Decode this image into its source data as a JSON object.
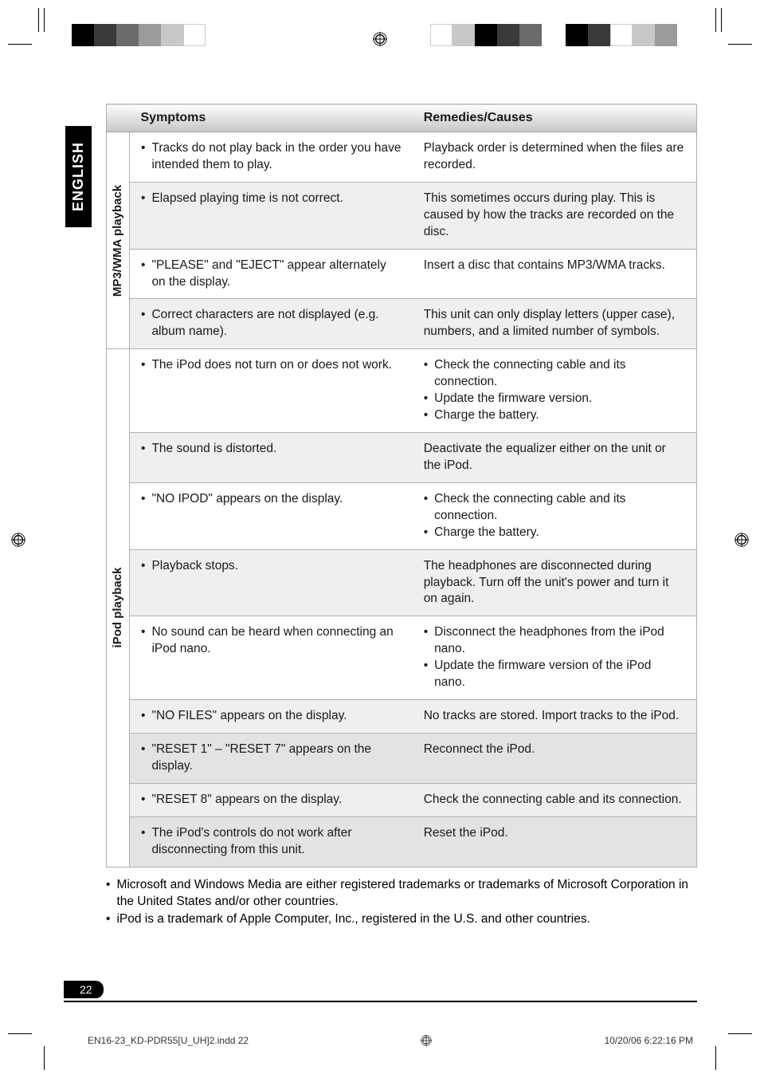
{
  "language_tab": "ENGLISH",
  "page_number": "22",
  "slug_left": "EN16-23_KD-PDR55[U_UH]2.indd   22",
  "slug_right": "10/20/06   6:22:16 PM",
  "headers": {
    "symptoms": "Symptoms",
    "remedies": "Remedies/Causes"
  },
  "sections": [
    {
      "label": "MP3/WMA playback",
      "rows": [
        {
          "shade": "shade-a",
          "symptom": "Tracks do not play back in the order you have intended them to play.",
          "remedy_text": "Playback order is determined when the files are recorded."
        },
        {
          "shade": "shade-b",
          "symptom": "Elapsed playing time is not correct.",
          "remedy_text": "This sometimes occurs during play. This is caused by how the tracks are recorded on the disc."
        },
        {
          "shade": "shade-a",
          "symptom": "\"PLEASE\" and \"EJECT\" appear alternately on the display.",
          "remedy_text": "Insert a disc that contains MP3/WMA tracks."
        },
        {
          "shade": "shade-b",
          "symptom": "Correct characters are not displayed (e.g. album name).",
          "remedy_text": "This unit can only display letters (upper case), numbers, and a limited number of symbols."
        }
      ]
    },
    {
      "label": "iPod playback",
      "rows": [
        {
          "shade": "shade-a",
          "symptom": "The iPod does not turn on or does not work.",
          "remedy_list": [
            "Check the connecting cable and its connection.",
            "Update the firmware version.",
            "Charge the battery."
          ]
        },
        {
          "shade": "shade-b",
          "symptom": "The sound is distorted.",
          "remedy_text": "Deactivate the equalizer either on the unit or the iPod."
        },
        {
          "shade": "shade-a",
          "symptom": "\"NO IPOD\" appears on the display.",
          "remedy_list": [
            "Check the connecting cable and its connection.",
            "Charge the battery."
          ]
        },
        {
          "shade": "shade-b",
          "symptom": "Playback stops.",
          "remedy_text": "The headphones are disconnected during playback. Turn off the unit's power and turn it on again."
        },
        {
          "shade": "shade-a",
          "symptom": "No sound can be heard when connecting an iPod nano.",
          "remedy_list": [
            "Disconnect the headphones from the iPod nano.",
            "Update the firmware version of the iPod nano."
          ]
        },
        {
          "shade": "shade-b",
          "symptom": "\"NO FILES\" appears on the display.",
          "remedy_text": "No tracks are stored. Import tracks to the iPod."
        },
        {
          "shade": "shade-c",
          "symptom": "\"RESET 1\" – \"RESET 7\" appears on the display.",
          "remedy_text": "Reconnect the iPod."
        },
        {
          "shade": "shade-b",
          "symptom": "\"RESET 8\" appears on the display.",
          "remedy_text": "Check the connecting cable and its connection."
        },
        {
          "shade": "shade-c",
          "symptom": "The iPod's controls do not work after disconnecting from this unit.",
          "remedy_text": "Reset the iPod."
        }
      ]
    }
  ],
  "footnotes": [
    "Microsoft and Windows Media are either registered trademarks or trademarks of Microsoft Corporation in the United States and/or other countries.",
    "iPod is a trademark of Apple Computer, Inc., registered in the U.S. and other countries."
  ],
  "color_bars": {
    "left": [
      "#000000",
      "#3a3a3a",
      "#6b6b6b",
      "#9b9b9b",
      "#c8c8c8",
      "#ffffff"
    ],
    "right_a": [
      "#ffffff",
      "#c8c8c8",
      "#000000",
      "#3a3a3a",
      "#6b6b6b"
    ],
    "right_b": [
      "#000000",
      "#3a3a3a",
      "#ffffff",
      "#c8c8c8",
      "#9b9b9b"
    ]
  }
}
